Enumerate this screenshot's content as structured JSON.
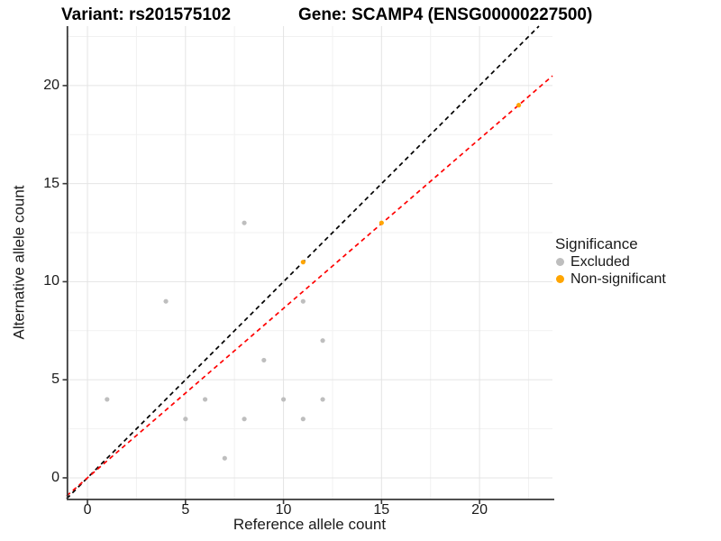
{
  "page": {
    "title_left": "Variant: rs201575102",
    "title_right": "Gene: SCAMP4 (ENSG00000227500)"
  },
  "chart_data": {
    "type": "scatter",
    "title_left": "Variant: rs201575102",
    "title_right": "Gene: SCAMP4 (ENSG00000227500)",
    "xlabel": "Reference allele count",
    "ylabel": "Alternative allele count",
    "xlim": [
      -1.06,
      23.72
    ],
    "ylim": [
      -1.06,
      23.03
    ],
    "x_ticks": [
      0,
      5,
      10,
      15,
      20
    ],
    "y_ticks": [
      0,
      5,
      10,
      15,
      20
    ],
    "x_minor_ticks": [
      2.5,
      7.5,
      12.5,
      17.5,
      22.5
    ],
    "y_minor_ticks": [
      2.5,
      7.5,
      12.5,
      17.5,
      22.5
    ],
    "grid": true,
    "legend_title": "Significance",
    "legend_position": "right",
    "series": [
      {
        "name": "Excluded",
        "color": "#BEBEBE",
        "points": [
          [
            1,
            4
          ],
          [
            4,
            9
          ],
          [
            5,
            3
          ],
          [
            6,
            4
          ],
          [
            7,
            1
          ],
          [
            8,
            3
          ],
          [
            8,
            13
          ],
          [
            9,
            6
          ],
          [
            10,
            4
          ],
          [
            11,
            3
          ],
          [
            11,
            9
          ],
          [
            12,
            4
          ],
          [
            12,
            7
          ]
        ]
      },
      {
        "name": "Non-significant",
        "color": "#FFA500",
        "points": [
          [
            11,
            11
          ],
          [
            15,
            13
          ],
          [
            22,
            19
          ]
        ]
      }
    ],
    "reference_lines": [
      {
        "name": "identity",
        "slope": 1,
        "intercept": 0,
        "color": "#000000",
        "style": "dashed"
      },
      {
        "name": "fit",
        "slope": 0.864,
        "intercept": 0,
        "color": "#FF0000",
        "style": "dashed"
      }
    ],
    "colors": {
      "grid_major": "#E4E4E4",
      "grid_minor": "#F1F1F1",
      "axis": "#383838",
      "text": "#1A1A1A"
    }
  }
}
